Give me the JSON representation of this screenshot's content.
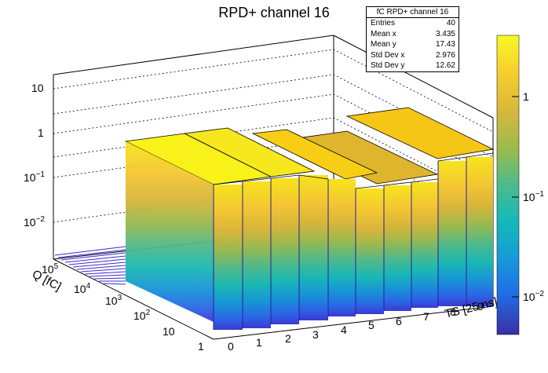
{
  "chart_data": {
    "type": "lego3d",
    "title": "RPD+ channel 16",
    "xlabel": "TS [25 ns]",
    "ylabel": "Q [fC]",
    "x_ticks": [
      "0",
      "1",
      "2",
      "3",
      "4",
      "5",
      "6",
      "7",
      "8",
      "9"
    ],
    "y_ticks": [
      "1",
      "10",
      "10²",
      "10³",
      "10⁴",
      "10⁵"
    ],
    "z_ticks": [
      "10⁻²",
      "10⁻¹",
      "1",
      "10"
    ],
    "colorbar_ticks": [
      "10⁻²",
      "10⁻¹",
      "1"
    ],
    "z_log": true,
    "y_log": true,
    "bars": [
      {
        "ts": 0,
        "z": 1
      },
      {
        "ts": 1,
        "z": 1
      },
      {
        "ts": 2,
        "z": 1
      },
      {
        "ts": 3,
        "z": 1
      },
      {
        "ts": 4,
        "z": 1
      },
      {
        "ts": 5,
        "z": 1
      },
      {
        "ts": 6,
        "z": 1
      },
      {
        "ts": 7,
        "z": 1
      },
      {
        "ts": 8,
        "z": 1
      },
      {
        "ts": 9,
        "z": 1
      }
    ],
    "stats": {
      "name": "fC RPD+ channel 16",
      "rows": [
        {
          "label": "Entries",
          "value": "40"
        },
        {
          "label": "Mean x",
          "value": "3.435"
        },
        {
          "label": "Mean y",
          "value": "17.43"
        },
        {
          "label": "Std Dev x",
          "value": "2.976"
        },
        {
          "label": "Std Dev y",
          "value": "12.62"
        }
      ]
    }
  }
}
